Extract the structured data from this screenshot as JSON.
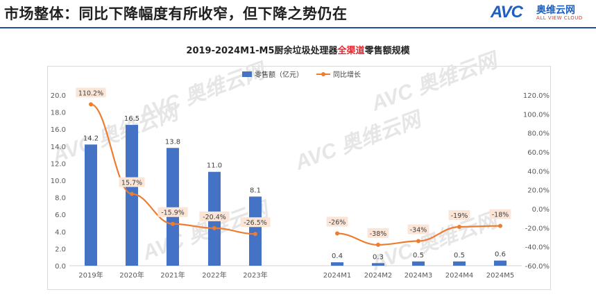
{
  "header": {
    "title": "市场整体：同比下降幅度有所收窄，但下降之势仍在",
    "logo_mark": "AVC",
    "logo_cn": "奥维云网",
    "logo_en": "ALL VIEW CLOUD"
  },
  "chart_data": {
    "type": "bar+line",
    "title_parts": [
      "2019-2024M1-M5厨余垃圾处理器",
      "全渠道",
      "零售额规模"
    ],
    "categories": [
      "2019年",
      "2020年",
      "2021年",
      "2022年",
      "2023年",
      "2024M1",
      "2024M2",
      "2024M3",
      "2024M4",
      "2024M5"
    ],
    "series": [
      {
        "name": "零售额（亿元）",
        "type": "bar",
        "axis": "left",
        "color": "#4472c4",
        "values": [
          14.2,
          16.5,
          13.8,
          11.0,
          8.1,
          0.4,
          0.3,
          0.5,
          0.5,
          0.6
        ],
        "labels": [
          "14.2",
          "16.5",
          "13.8",
          "11.0",
          "8.1",
          "0.4",
          "0.3",
          "0.5",
          "0.5",
          "0.6"
        ]
      },
      {
        "name": "同比增长",
        "type": "line",
        "axis": "right",
        "color": "#ed7d31",
        "values": [
          110.2,
          15.7,
          -15.9,
          -20.4,
          -26.5,
          -26,
          -38,
          -34,
          -19,
          -18
        ],
        "labels": [
          "110.2%",
          "15.7%",
          "-15.9%",
          "-20.4%",
          "-26.5%",
          "-26%",
          "-38%",
          "-34%",
          "-19%",
          "-18%"
        ]
      }
    ],
    "y_left": {
      "min": 0,
      "max": 20,
      "step": 2,
      "ticks": [
        "0.0",
        "2.0",
        "4.0",
        "6.0",
        "8.0",
        "10.0",
        "12.0",
        "14.0",
        "16.0",
        "18.0",
        "20.0"
      ]
    },
    "y_right": {
      "min": -60,
      "max": 120,
      "step": 20,
      "ticks": [
        "-60.0%",
        "-40.0%",
        "-20.0%",
        "0.0%",
        "20.0%",
        "40.0%",
        "60.0%",
        "80.0%",
        "100.0%",
        "120.0%"
      ]
    },
    "legend_position": "top-center",
    "grid": false,
    "watermark": "AVC 奥维云网 ALL VIEW CLOUD"
  }
}
